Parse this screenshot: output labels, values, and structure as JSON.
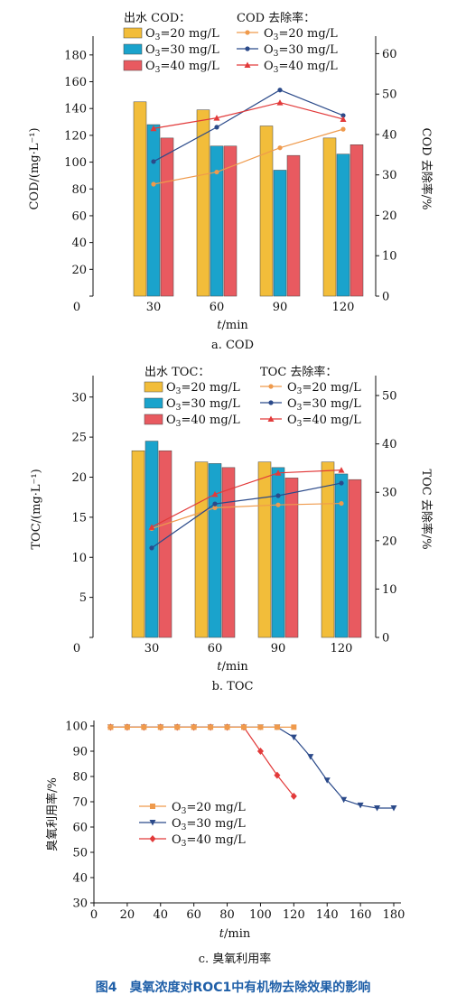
{
  "figure_caption": "图4　臭氧浓度对ROC1中有机物去除效果的影响",
  "colors": {
    "o3_20": "#f2bd3a",
    "o3_30": "#1aa3cc",
    "o3_40": "#e85a60",
    "line_20": "#ef9a4c",
    "line_30": "#2b4a8a",
    "line_40": "#e23a3a",
    "caption": "#1f5fa8"
  },
  "chart_data": [
    {
      "type": "bar+line",
      "subcaption": "a. COD",
      "xlabel": "t/min",
      "ylabel_left": "COD/(mg·L⁻¹)",
      "ylabel_right": "COD 去除率/%",
      "categories": [
        "30",
        "60",
        "90",
        "120"
      ],
      "x_zero_tick": "0",
      "ylim_left": [
        0,
        190
      ],
      "yticks_left": [
        0,
        20,
        40,
        60,
        80,
        100,
        120,
        140,
        160,
        180
      ],
      "ylim_right": [
        0,
        63
      ],
      "yticks_right": [
        0,
        10,
        20,
        30,
        40,
        50,
        60
      ],
      "legend_bar_title": "出水 COD：",
      "legend_line_title": "COD 去除率：",
      "bar_series": [
        {
          "name": "O₃=20 mg/L",
          "values": [
            145,
            139,
            127,
            118
          ]
        },
        {
          "name": "O₃=30 mg/L",
          "values": [
            128,
            112,
            94,
            106
          ]
        },
        {
          "name": "O₃=40 mg/L",
          "values": [
            118,
            112,
            105,
            113
          ]
        }
      ],
      "line_series": [
        {
          "name": "O₃=20 mg/L",
          "marker": "circle",
          "values": [
            27.7,
            30.7,
            36.7,
            41.3
          ]
        },
        {
          "name": "O₃=30 mg/L",
          "marker": "circle",
          "values": [
            33.3,
            41.8,
            51.0,
            44.7
          ]
        },
        {
          "name": "O₃=40 mg/L",
          "marker": "triangle",
          "values": [
            41.5,
            44.1,
            47.9,
            43.8
          ]
        }
      ]
    },
    {
      "type": "bar+line",
      "subcaption": "b. TOC",
      "xlabel": "t/min",
      "ylabel_left": "TOC/(mg·L⁻¹)",
      "ylabel_right": "TOC 去除率/%",
      "categories": [
        "30",
        "60",
        "90",
        "120"
      ],
      "x_zero_tick": "0",
      "ylim_left": [
        0,
        32
      ],
      "yticks_left": [
        0,
        5,
        10,
        15,
        20,
        25,
        30
      ],
      "ylim_right": [
        0,
        53
      ],
      "yticks_right": [
        0,
        10,
        20,
        30,
        40,
        50
      ],
      "legend_bar_title": "出水 TOC：",
      "legend_line_title": "TOC 去除率：",
      "bar_series": [
        {
          "name": "O₃=20 mg/L",
          "values": [
            23.3,
            21.9,
            21.9,
            21.9
          ]
        },
        {
          "name": "O₃=30 mg/L",
          "values": [
            24.5,
            21.7,
            21.2,
            20.4
          ]
        },
        {
          "name": "O₃=40 mg/L",
          "values": [
            23.3,
            21.2,
            19.9,
            19.7
          ]
        }
      ],
      "line_series": [
        {
          "name": "O₃=20 mg/L",
          "marker": "circle",
          "values": [
            22.5,
            26.8,
            27.4,
            27.7
          ]
        },
        {
          "name": "O₃=30 mg/L",
          "marker": "circle",
          "values": [
            18.5,
            27.6,
            29.3,
            31.9
          ]
        },
        {
          "name": "O₃=40 mg/L",
          "marker": "triangle",
          "values": [
            22.8,
            29.6,
            34.0,
            34.6
          ]
        }
      ]
    },
    {
      "type": "line",
      "subcaption": "c. 臭氧利用率",
      "xlabel": "t/min",
      "ylabel": "臭氧利用率/%",
      "xlim": [
        0,
        180
      ],
      "xticks": [
        0,
        20,
        40,
        60,
        80,
        100,
        120,
        140,
        160,
        180
      ],
      "ylim": [
        30,
        100
      ],
      "yticks": [
        30,
        40,
        50,
        60,
        70,
        80,
        90,
        100
      ],
      "series": [
        {
          "name": "O₃=20 mg/L",
          "marker": "square",
          "x": [
            10,
            20,
            30,
            40,
            50,
            60,
            70,
            80,
            90,
            100,
            110,
            120
          ],
          "y": [
            99.5,
            99.5,
            99.5,
            99.5,
            99.5,
            99.5,
            99.5,
            99.5,
            99.5,
            99.5,
            99.5,
            99.5
          ]
        },
        {
          "name": "O₃=30 mg/L",
          "marker": "triangle-down",
          "x": [
            10,
            20,
            30,
            40,
            50,
            60,
            70,
            80,
            90,
            100,
            110,
            120,
            130,
            140,
            150,
            160,
            170,
            180
          ],
          "y": [
            99.5,
            99.5,
            99.5,
            99.5,
            99.5,
            99.5,
            99.5,
            99.5,
            99.5,
            99.5,
            99.5,
            95.5,
            87.8,
            78.5,
            70.8,
            68.6,
            67.5,
            67.5
          ]
        },
        {
          "name": "O₃=40 mg/L",
          "marker": "diamond",
          "x": [
            10,
            20,
            30,
            40,
            50,
            60,
            70,
            80,
            90,
            100,
            110,
            120
          ],
          "y": [
            99.5,
            99.5,
            99.5,
            99.5,
            99.5,
            99.5,
            99.5,
            99.5,
            99.5,
            90.0,
            80.5,
            72.2
          ]
        }
      ]
    }
  ]
}
